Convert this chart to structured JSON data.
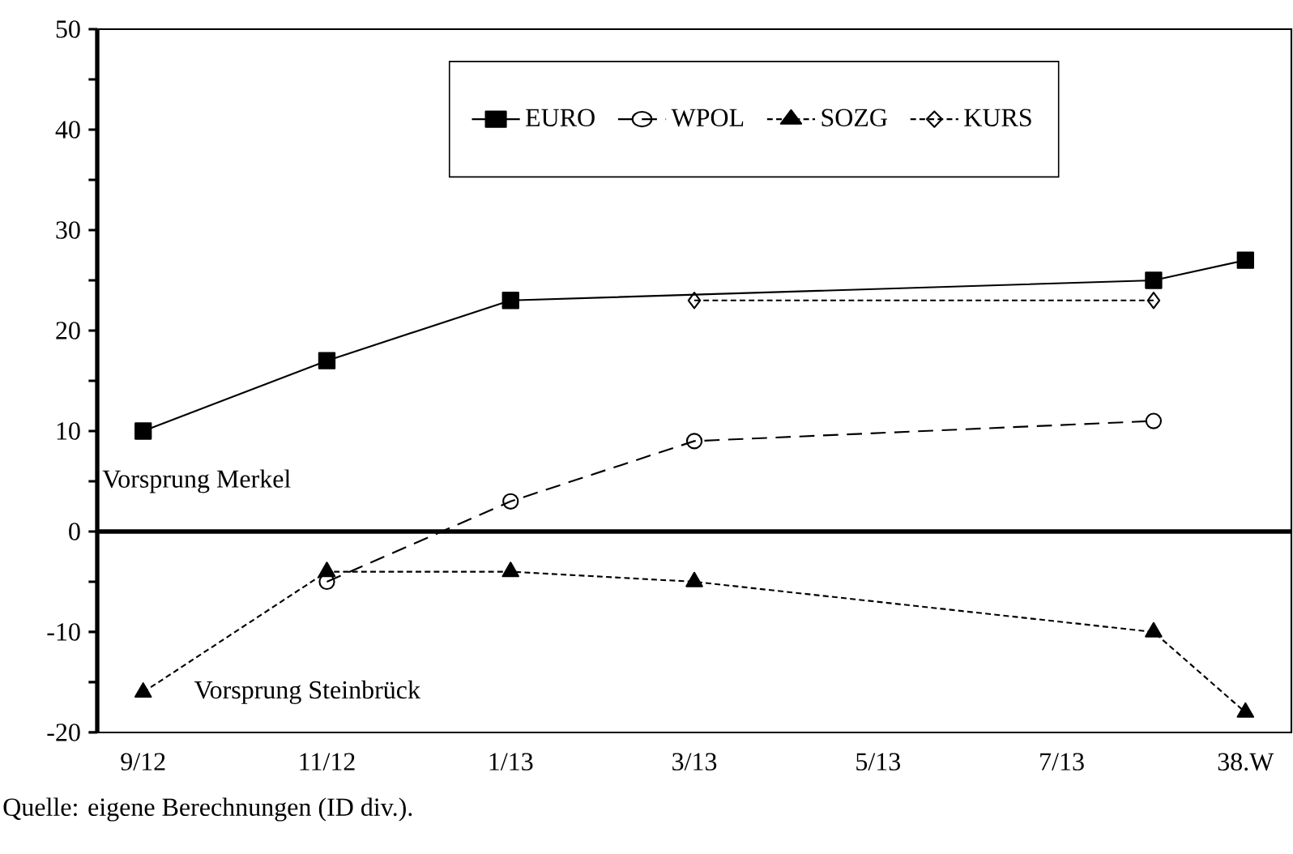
{
  "chart_data": {
    "type": "line",
    "categories": [
      "9/12",
      null,
      "11/12",
      null,
      "1/13",
      null,
      "3/13",
      null,
      "5/13",
      null,
      "7/13",
      null,
      "38.W"
    ],
    "ylim": [
      -20,
      50
    ],
    "yticks": [
      -20,
      {
        "value": -15,
        "label": null
      },
      -10,
      {
        "value": -5,
        "label": null
      },
      0,
      {
        "value": 5,
        "label": null
      },
      10,
      {
        "value": 15,
        "label": null
      },
      20,
      {
        "value": 25,
        "label": null
      },
      30,
      {
        "value": 35,
        "label": null
      },
      40,
      {
        "value": 45,
        "label": null
      },
      50
    ],
    "series": [
      {
        "name": "EURO",
        "color": "#000000",
        "marker": "square",
        "line_style": "solid",
        "values": [
          10,
          null,
          17,
          null,
          23,
          null,
          null,
          null,
          null,
          null,
          null,
          25,
          27
        ]
      },
      {
        "name": "WPOL",
        "color": "#000000",
        "marker": "circle",
        "line_style": "dashed",
        "values": [
          null,
          null,
          -5,
          null,
          3,
          null,
          9,
          null,
          null,
          null,
          null,
          11,
          null
        ]
      },
      {
        "name": "SOZG",
        "color": "#000000",
        "marker": "triangle",
        "line_style": "dotted",
        "values": [
          -16,
          null,
          -4,
          null,
          -4,
          null,
          -5,
          null,
          null,
          null,
          null,
          -10,
          -18
        ]
      },
      {
        "name": "KURS",
        "color": "#000000",
        "marker": "diamond",
        "line_style": "dotted",
        "values": [
          null,
          null,
          null,
          null,
          null,
          null,
          23,
          null,
          null,
          null,
          null,
          23,
          null
        ]
      }
    ],
    "legend": "top",
    "annotations": [
      "Vorsprung Merkel",
      "Vorsprung Steinbrück",
      "Quelle: eigene Berechnungen (ID div.)."
    ]
  }
}
